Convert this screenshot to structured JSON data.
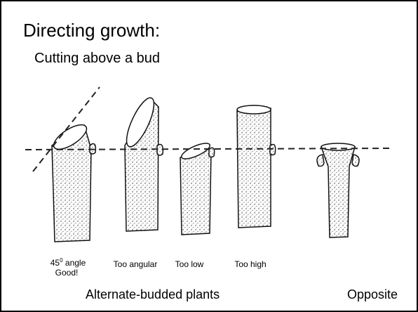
{
  "header": {
    "title": "Directing growth:",
    "subtitle": "Cutting above a bud"
  },
  "cuts": [
    {
      "number": "45",
      "superscript": "0",
      "text": "angle",
      "note": "Good!"
    },
    {
      "text": "Too angular"
    },
    {
      "text": "Too low"
    },
    {
      "text": "Too high"
    }
  ],
  "groups": {
    "alternate": "Alternate-budded plants",
    "opposite": "Opposite"
  }
}
